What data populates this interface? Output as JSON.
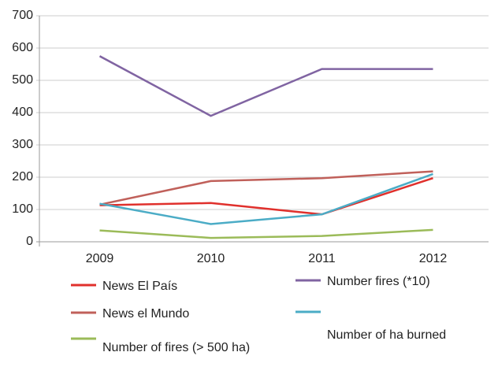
{
  "chart_data": {
    "type": "line",
    "categories": [
      "2009",
      "2010",
      "2011",
      "2012"
    ],
    "series": [
      {
        "name": "News El País",
        "color": "#e0302c",
        "values": [
          113,
          120,
          85,
          197
        ]
      },
      {
        "name": "News el Mundo",
        "color": "#c0605a",
        "values": [
          115,
          188,
          197,
          218
        ]
      },
      {
        "name": "Number of fires (> 500 ha)",
        "color": "#9bbb59",
        "values": [
          35,
          12,
          18,
          37
        ]
      },
      {
        "name": "Number fires (*10)",
        "color": "#8064a2",
        "values": [
          575,
          390,
          535,
          535
        ]
      },
      {
        "name": "Number of ha burned",
        "color": "#4bacc6",
        "values": [
          118,
          55,
          85,
          210
        ]
      }
    ],
    "ylim": [
      0,
      700
    ],
    "yticks": [
      0,
      100,
      200,
      300,
      400,
      500,
      600,
      700
    ],
    "grid": true
  }
}
